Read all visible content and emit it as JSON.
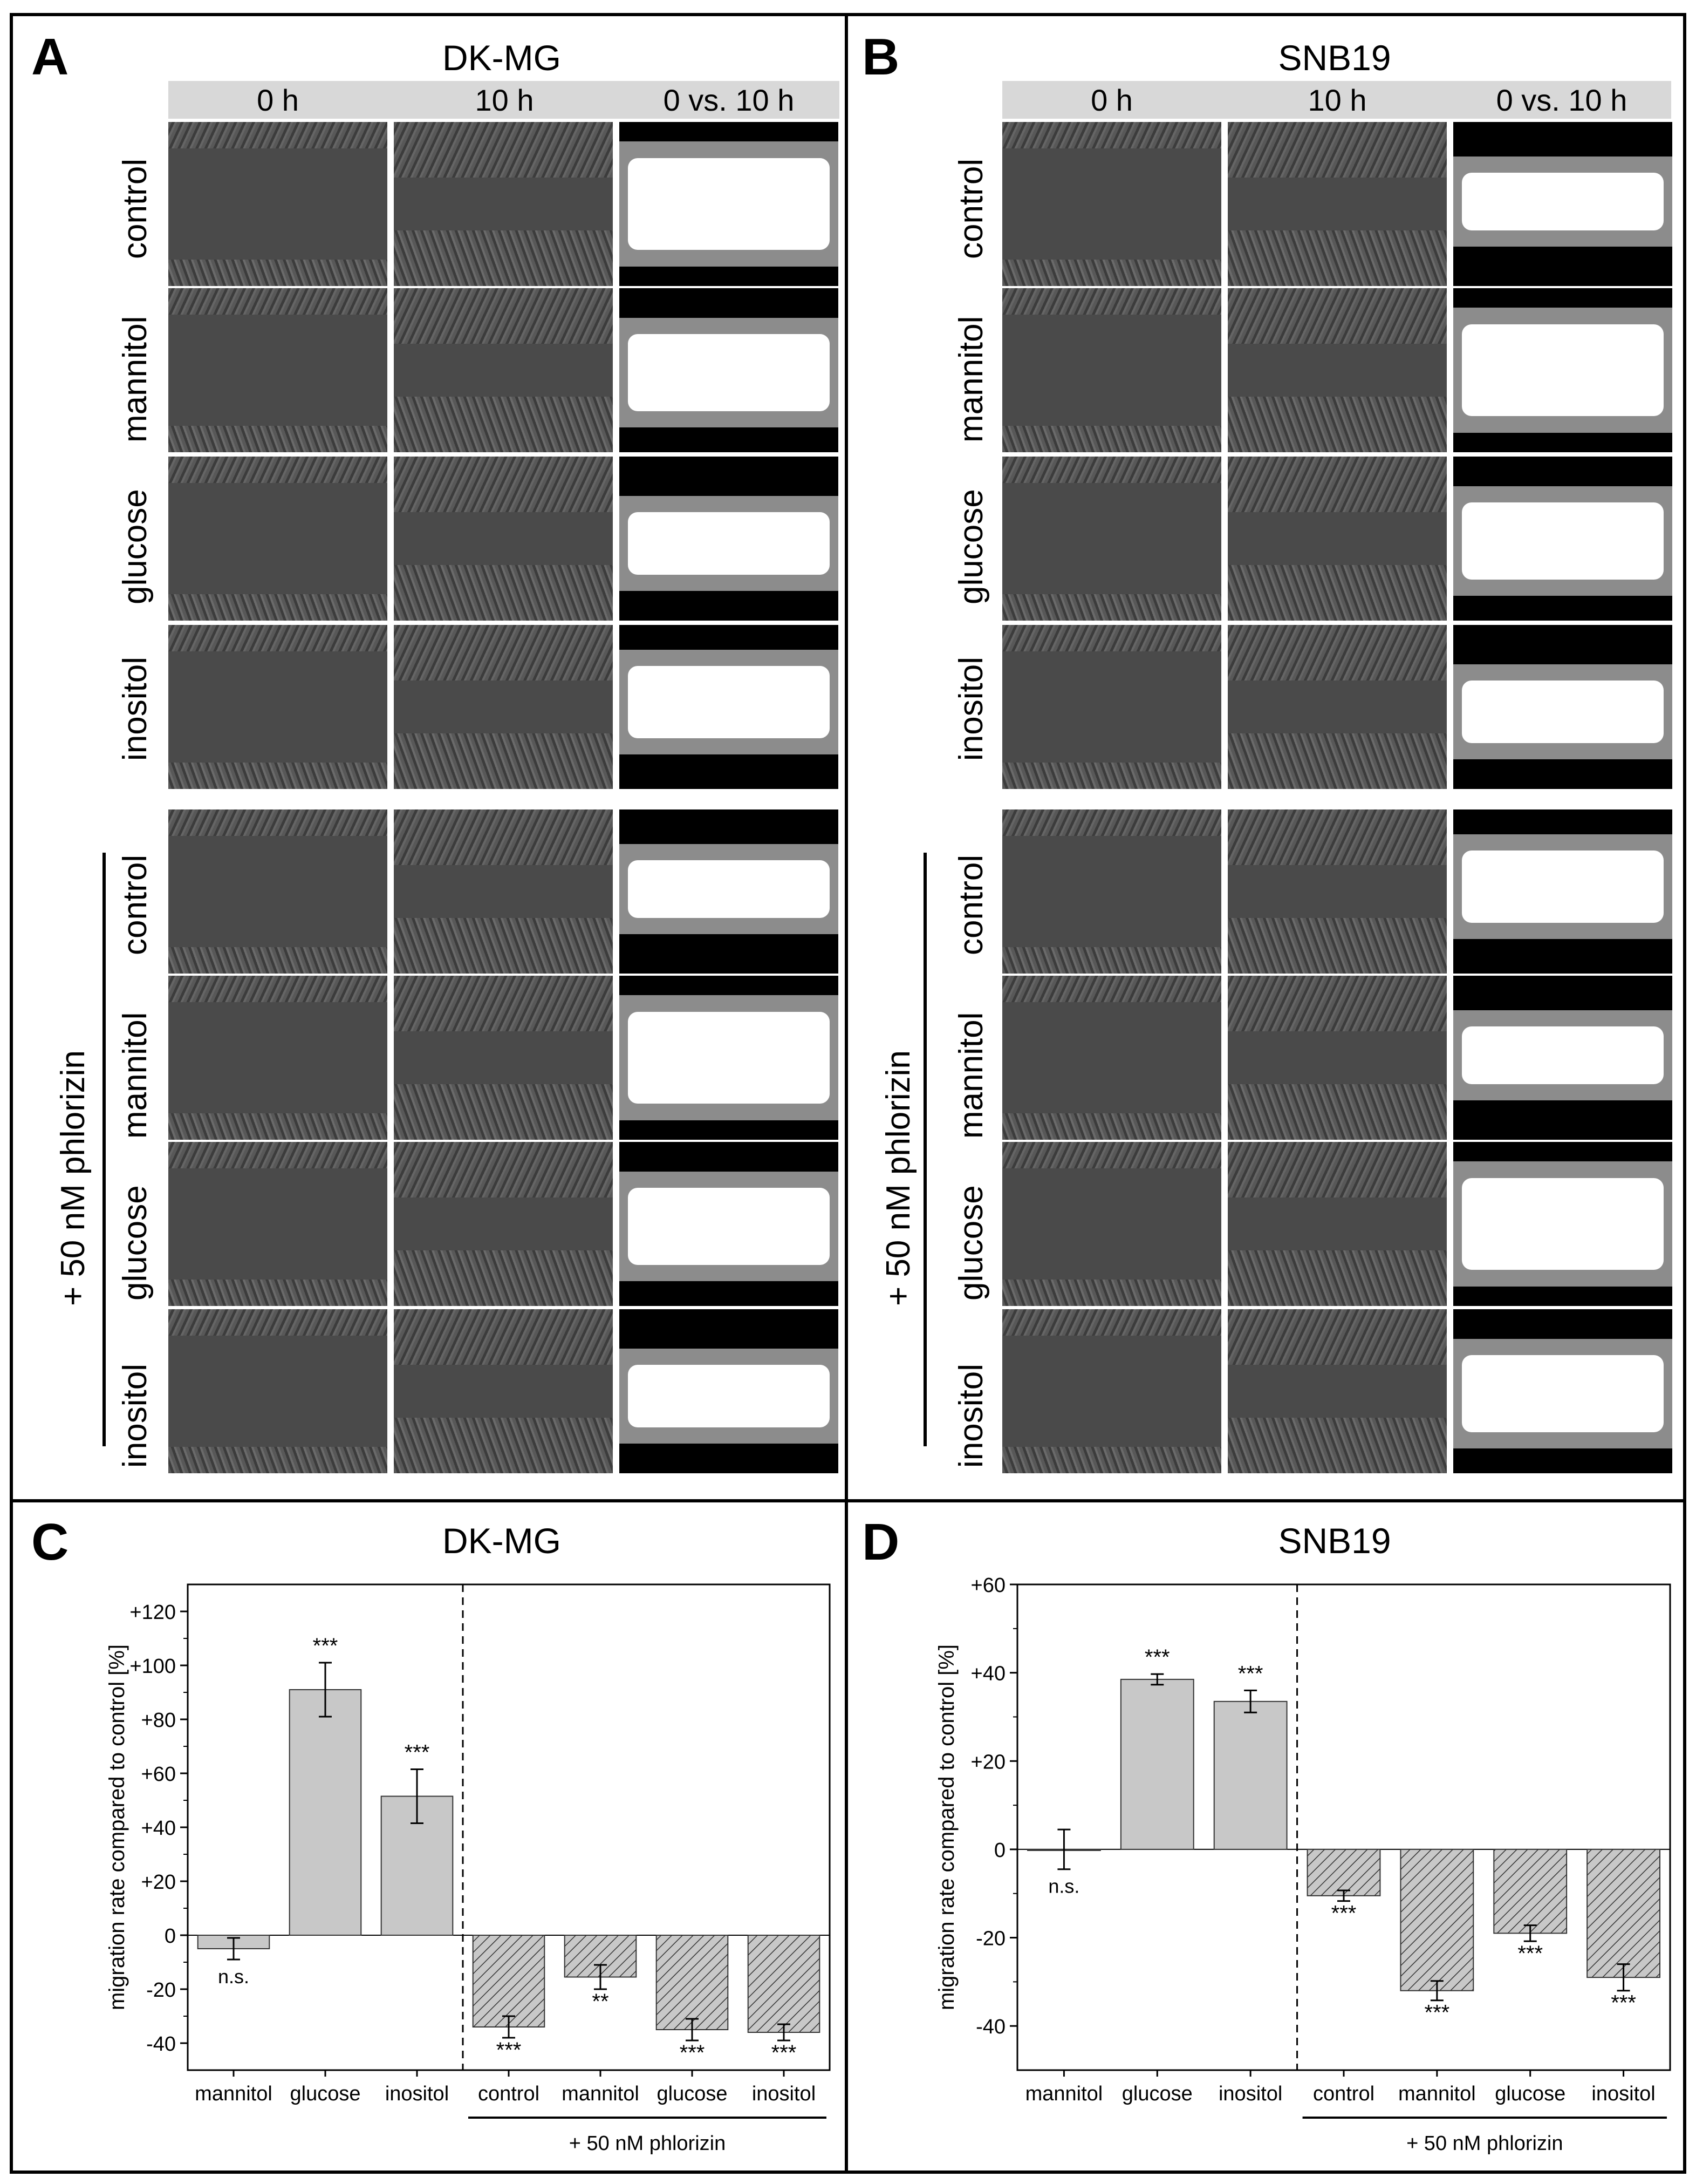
{
  "panels": {
    "A": {
      "letter": "A",
      "title": "DK-MG"
    },
    "B": {
      "letter": "B",
      "title": "SNB19"
    },
    "C": {
      "letter": "C",
      "title": "DK-MG"
    },
    "D": {
      "letter": "D",
      "title": "SNB19"
    }
  },
  "column_headers": [
    "0 h",
    "10 h",
    "0 vs. 10 h"
  ],
  "row_labels": [
    "control",
    "mannitol",
    "glucose",
    "inositol"
  ],
  "phlorizin_label": "+ 50 nM phlorizin",
  "chart_data": [
    {
      "type": "bar",
      "panel": "C",
      "title": "DK-MG",
      "ylabel": "migration rate compared to control [%]",
      "categories": [
        "mannitol",
        "glucose",
        "inositol",
        "control",
        "mannitol",
        "glucose",
        "inositol"
      ],
      "values": [
        -5,
        91,
        51.5,
        -34,
        -15.5,
        -35,
        -36
      ],
      "errors": [
        4,
        10,
        10,
        4,
        4.5,
        4,
        3
      ],
      "significance": [
        "n.s.",
        "***",
        "***",
        "***",
        "**",
        "***",
        "***"
      ],
      "hatched": [
        false,
        false,
        false,
        true,
        true,
        true,
        true
      ],
      "ylim": [
        -50,
        130
      ],
      "yticks": [
        -40,
        -20,
        0,
        20,
        40,
        60,
        80,
        100,
        120
      ],
      "ytick_labels": [
        "-40",
        "-20",
        "0",
        "+20",
        "+40",
        "+60",
        "+80",
        "+100",
        "+120"
      ],
      "group_label": "+ 50 nM phlorizin"
    },
    {
      "type": "bar",
      "panel": "D",
      "title": "SNB19",
      "ylabel": "migration rate compared to control [%]",
      "categories": [
        "mannitol",
        "glucose",
        "inositol",
        "control",
        "mannitol",
        "glucose",
        "inositol"
      ],
      "values": [
        0,
        38.5,
        33.5,
        -10.5,
        -32,
        -19,
        -29
      ],
      "errors": [
        4.5,
        1.2,
        2.5,
        1.2,
        2.2,
        1.8,
        3
      ],
      "significance": [
        "n.s.",
        "***",
        "***",
        "***",
        "***",
        "***",
        "***"
      ],
      "hatched": [
        false,
        false,
        false,
        true,
        true,
        true,
        true
      ],
      "ylim": [
        -50,
        60
      ],
      "yticks": [
        -40,
        -20,
        0,
        20,
        40,
        60
      ],
      "ytick_labels": [
        "-40",
        "-20",
        "0",
        "+20",
        "+40",
        "+60"
      ],
      "group_label": "+ 50 nM phlorizin"
    }
  ]
}
